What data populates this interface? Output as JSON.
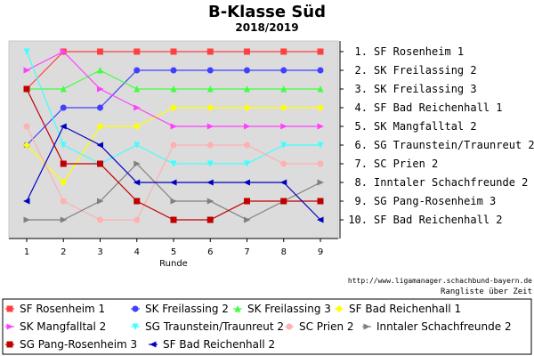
{
  "chart_data": {
    "type": "line",
    "title": "B-Klasse Süd",
    "subtitle": "2018/2019",
    "xlabel": "Runde",
    "x": [
      1,
      2,
      3,
      4,
      5,
      6,
      7,
      8,
      9
    ],
    "ylim": [
      1,
      10
    ],
    "y_inverted": true,
    "grid": false,
    "legend_position": "bottom",
    "rank_labels": [
      "1. SF Rosenheim 1",
      "2. SK Freilassing 2",
      "3. SK Freilassing 3",
      "4. SF Bad Reichenhall 1",
      "5. SK Mangfalltal 2",
      "6. SG Traunstein/Traunreut 2",
      "7. SC Prien 2",
      "8. Inntaler Schachfreunde 2",
      "9. SG Pang-Rosenheim 3",
      "10. SF Bad Reichenhall 2"
    ],
    "series": [
      {
        "name": "SF Rosenheim 1",
        "color": "#ff4040",
        "marker": "square",
        "values": [
          3,
          1,
          1,
          1,
          1,
          1,
          1,
          1,
          1
        ]
      },
      {
        "name": "SK Freilassing 2",
        "color": "#4040ff",
        "marker": "circle",
        "values": [
          6,
          4,
          4,
          2,
          2,
          2,
          2,
          2,
          2
        ]
      },
      {
        "name": "SK Freilassing 3",
        "color": "#40ff40",
        "marker": "triangle-up",
        "values": [
          3,
          3,
          2,
          3,
          3,
          3,
          3,
          3,
          3
        ]
      },
      {
        "name": "SF Bad Reichenhall 1",
        "color": "#ffff00",
        "marker": "diamond",
        "values": [
          6,
          8,
          5,
          5,
          4,
          4,
          4,
          4,
          4
        ]
      },
      {
        "name": "SK Mangfalltal 2",
        "color": "#ff40ff",
        "marker": "triangle-right",
        "values": [
          2,
          1,
          3,
          4,
          5,
          5,
          5,
          5,
          5
        ]
      },
      {
        "name": "SG Traunstein/Traunreut 2",
        "color": "#40ffff",
        "marker": "triangle-down",
        "values": [
          1,
          6,
          7,
          6,
          7,
          7,
          7,
          6,
          6
        ]
      },
      {
        "name": "SC Prien 2",
        "color": "#ffb0b0",
        "marker": "circle",
        "values": [
          5,
          9,
          10,
          10,
          6,
          6,
          6,
          7,
          7
        ]
      },
      {
        "name": "Inntaler Schachfreunde 2",
        "color": "#808080",
        "marker": "triangle-right",
        "values": [
          10,
          10,
          9,
          7,
          9,
          9,
          10,
          9,
          8
        ]
      },
      {
        "name": "SG Pang-Rosenheim 3",
        "color": "#c00000",
        "marker": "square",
        "values": [
          3,
          7,
          7,
          9,
          10,
          10,
          9,
          9,
          9
        ]
      },
      {
        "name": "SF Bad Reichenhall 2",
        "color": "#0000c0",
        "marker": "triangle-left",
        "values": [
          9,
          5,
          6,
          8,
          8,
          8,
          8,
          8,
          10
        ]
      }
    ]
  },
  "footer": {
    "url": "http://www.ligamanager.schachbund-bayern.de",
    "caption": "Rangliste über Zeit"
  }
}
